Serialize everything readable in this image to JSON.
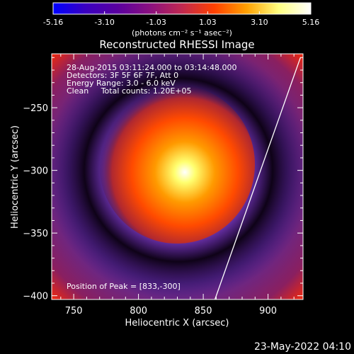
{
  "colorbar": {
    "tick_labels": [
      "-5.16",
      "-3.10",
      "-1.03",
      "1.03",
      "3.10",
      "5.16"
    ],
    "tick_values": [
      -5.16,
      -3.1,
      -1.03,
      1.03,
      3.1,
      5.16
    ],
    "range": [
      -5.16,
      5.16
    ],
    "unit_label": "(photons cm⁻² s⁻¹ asec⁻²)",
    "colors": [
      "#0000ff",
      "#3a00c0",
      "#5a00a0",
      "#8a1080",
      "#c02850",
      "#ff4000",
      "#ffa000",
      "#ffff80",
      "#ffffff"
    ]
  },
  "chart_data": {
    "type": "heatmap",
    "title": "Reconstructed RHESSI Image",
    "xlabel": "Heliocentric X (arcsec)",
    "ylabel": "Heliocentric Y (arcsec)",
    "xlim": [
      733,
      927
    ],
    "ylim": [
      -403,
      -207
    ],
    "xticks": [
      750,
      800,
      850,
      900
    ],
    "yticks": [
      -250,
      -300,
      -350,
      -400
    ],
    "xtick_labels": [
      "750",
      "800",
      "850",
      "900"
    ],
    "ytick_labels": [
      "−250",
      "−300",
      "−350",
      "−400"
    ],
    "peak": [
      833,
      -300
    ],
    "annotations": [
      "28-Aug-2015 03:11:24.000 to 03:14:48.000",
      "Detectors: 3F 5F 6F 7F, Att 0",
      "Energy Range: 3.0 - 6.0 keV",
      "Clean     Total counts: 1.20E+05",
      "Position of Peak = [833,-300]"
    ],
    "limb_line": [
      [
        859,
        -403
      ],
      [
        925,
        -210
      ]
    ]
  },
  "footer": {
    "timestamp": "23-May-2022 04:10"
  }
}
